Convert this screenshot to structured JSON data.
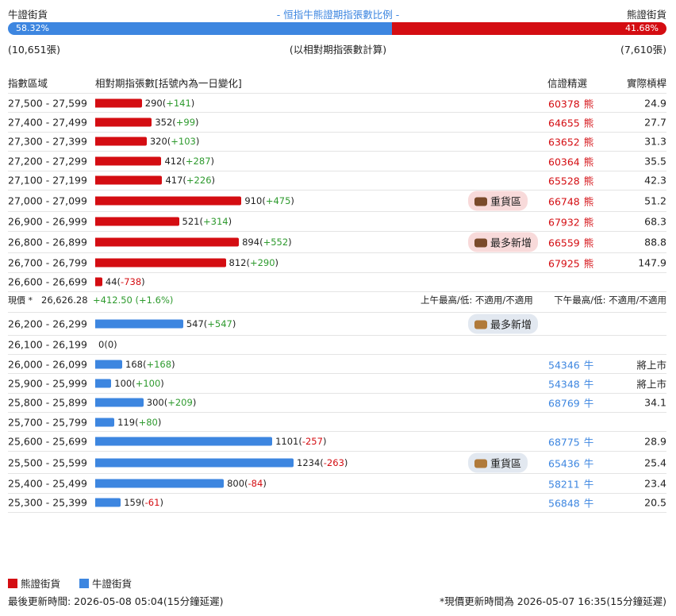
{
  "header": {
    "bull_label": "牛證街貨",
    "title": "- 恒指牛熊證期指張數比例 -",
    "bear_label": "熊證街貨"
  },
  "ratio": {
    "bull": {
      "value": 58.32,
      "label": "58.32%"
    },
    "bear": {
      "value": 41.68,
      "label": "41.68%"
    },
    "bull_count": "(10,651張)",
    "note": "(以相對期指張數計算)",
    "bear_count": "(7,610張)"
  },
  "columns": [
    "指數區域",
    "相對期指張數[括號內為一日變化]",
    "信證精選",
    "實際槓桿"
  ],
  "bear_rows": [
    {
      "range": "27,500 - 27,599",
      "count": 290,
      "change": "(+141)",
      "code": "60378",
      "kind": "熊",
      "leverage": "24.9"
    },
    {
      "range": "27,400 - 27,499",
      "count": 352,
      "change": "(+99)",
      "code": "64655",
      "kind": "熊",
      "leverage": "27.7"
    },
    {
      "range": "27,300 - 27,399",
      "count": 320,
      "change": "(+103)",
      "code": "63652",
      "kind": "熊",
      "leverage": "31.3"
    },
    {
      "range": "27,200 - 27,299",
      "count": 412,
      "change": "(+287)",
      "code": "60364",
      "kind": "熊",
      "leverage": "35.5"
    },
    {
      "range": "27,100 - 27,199",
      "count": 417,
      "change": "(+226)",
      "code": "65528",
      "kind": "熊",
      "leverage": "42.3"
    },
    {
      "range": "27,000 - 27,099",
      "count": 910,
      "change": "(+475)",
      "badge": "重貨區",
      "code": "66748",
      "kind": "熊",
      "leverage": "51.2"
    },
    {
      "range": "26,900 - 26,999",
      "count": 521,
      "change": "(+314)",
      "code": "67932",
      "kind": "熊",
      "leverage": "68.3"
    },
    {
      "range": "26,800 - 26,899",
      "count": 894,
      "change": "(+552)",
      "badge": "最多新增",
      "code": "66559",
      "kind": "熊",
      "leverage": "88.8"
    },
    {
      "range": "26,700 - 26,799",
      "count": 812,
      "change": "(+290)",
      "code": "67925",
      "kind": "熊",
      "leverage": "147.9"
    },
    {
      "range": "26,600 - 26,699",
      "count": 44,
      "change": "(-738)"
    }
  ],
  "price": {
    "label": "現價 *",
    "value": "26,626.28",
    "change": "+412.50 (+1.6%)",
    "am": "上午最高/低: 不適用/不適用",
    "pm": "下午最高/低: 不適用/不適用"
  },
  "bull_rows": [
    {
      "range": "26,200 - 26,299",
      "count": 547,
      "change": "(+547)",
      "badge": "最多新增"
    },
    {
      "range": "26,100 - 26,199",
      "count": 0,
      "change": "(0)"
    },
    {
      "range": "26,000 - 26,099",
      "count": 168,
      "change": "(+168)",
      "code": "54346",
      "kind": "牛",
      "leverage": "將上市"
    },
    {
      "range": "25,900 - 25,999",
      "count": 100,
      "change": "(+100)",
      "code": "54348",
      "kind": "牛",
      "leverage": "將上市"
    },
    {
      "range": "25,800 - 25,899",
      "count": 300,
      "change": "(+209)",
      "code": "68769",
      "kind": "牛",
      "leverage": "34.1"
    },
    {
      "range": "25,700 - 25,799",
      "count": 119,
      "change": "(+80)"
    },
    {
      "range": "25,600 - 25,699",
      "count": 1101,
      "change": "(-257)",
      "code": "68775",
      "kind": "牛",
      "leverage": "28.9"
    },
    {
      "range": "25,500 - 25,599",
      "count": 1234,
      "change": "(-263)",
      "badge": "重貨區",
      "code": "65436",
      "kind": "牛",
      "leverage": "25.4"
    },
    {
      "range": "25,400 - 25,499",
      "count": 800,
      "change": "(-84)",
      "code": "58211",
      "kind": "牛",
      "leverage": "23.4"
    },
    {
      "range": "25,300 - 25,399",
      "count": 159,
      "change": "(-61)",
      "code": "56848",
      "kind": "牛",
      "leverage": "20.5"
    }
  ],
  "legend": [
    {
      "name": "熊證街貨",
      "color": "#d40d12"
    },
    {
      "name": "牛證街貨",
      "color": "#3d86e0"
    }
  ],
  "footer": {
    "updated": "最後更新時間: 2026-05-08 05:04(15分鐘延遲)",
    "note": "*現價更新時間為 2026-05-07 16:35(15分鐘延遲)"
  }
}
